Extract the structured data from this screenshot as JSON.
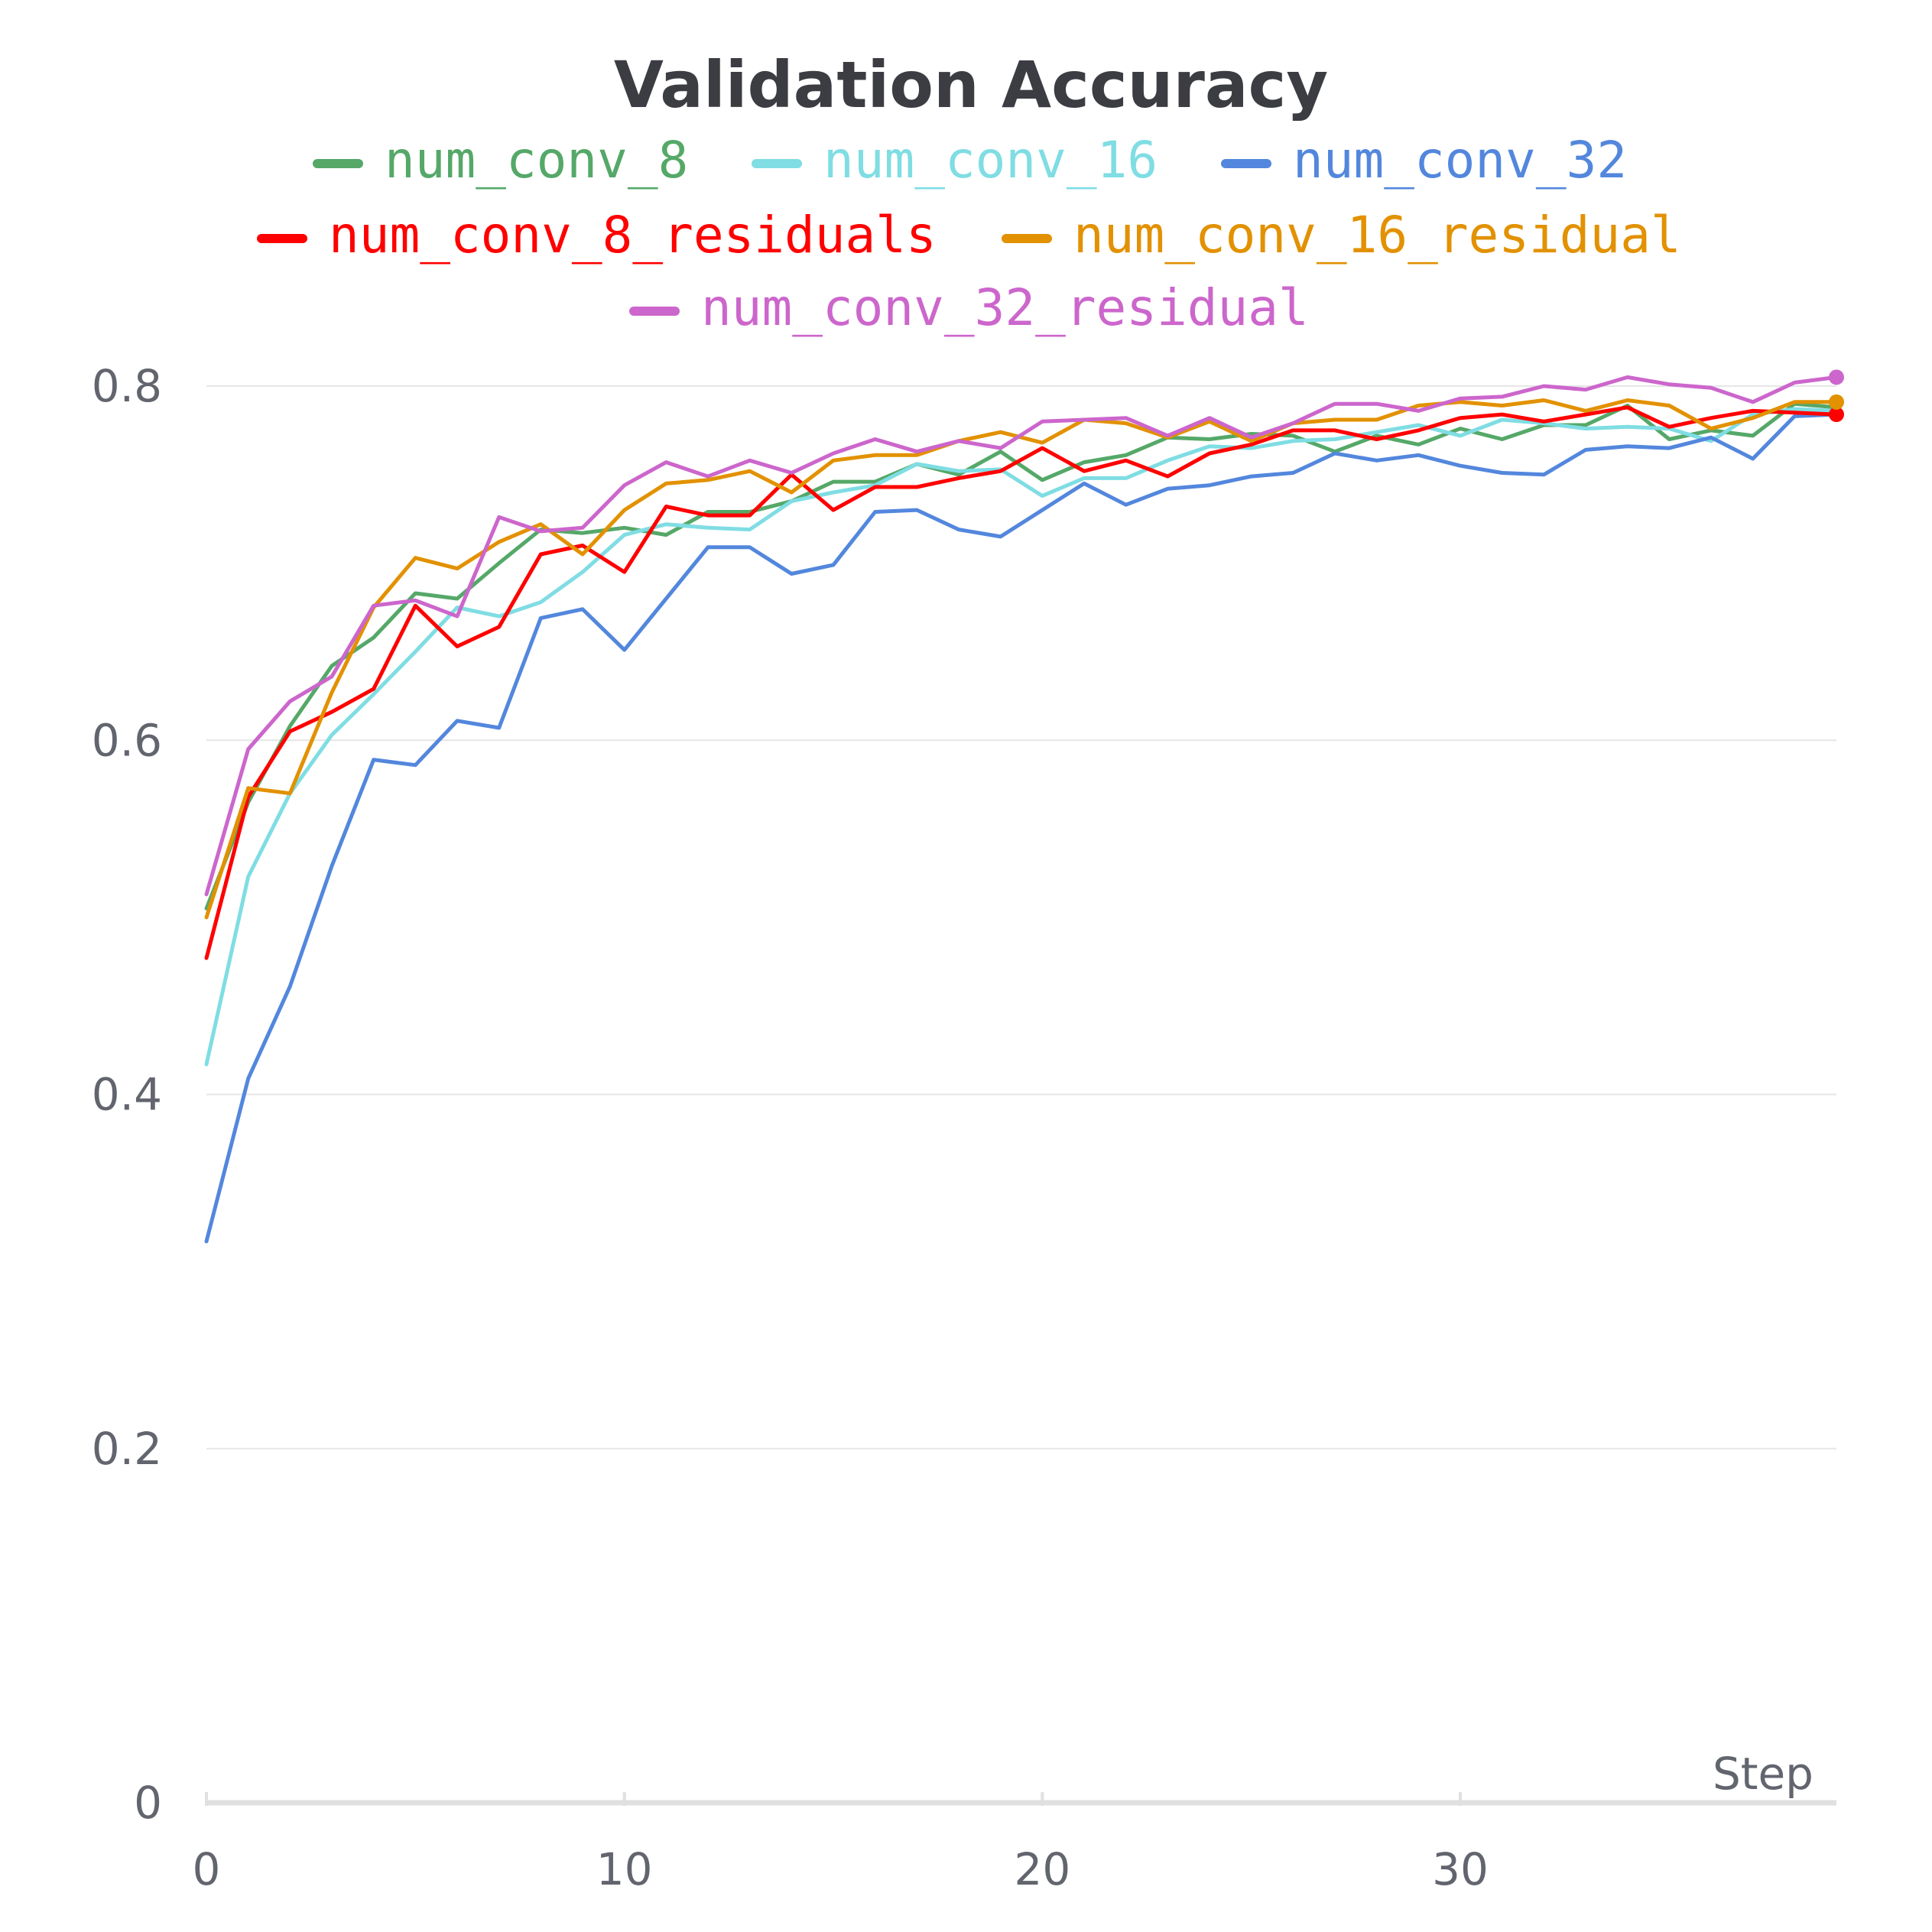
{
  "chart_data": {
    "type": "line",
    "title": "Validation Accuracy",
    "xlabel": "Step",
    "ylabel": "",
    "xlim": [
      0,
      39
    ],
    "ylim": [
      0,
      0.8
    ],
    "x_ticks": [
      0,
      10,
      20,
      30
    ],
    "x_tick_labels": [
      "0",
      "10",
      "20",
      "30"
    ],
    "y_ticks": [
      0,
      0.2,
      0.4,
      0.6,
      0.8
    ],
    "y_tick_labels": [
      "0",
      "0.2",
      "0.4",
      "0.6",
      "0.8"
    ],
    "grid": "horizontal",
    "legend_position": "top-center",
    "x": [
      0,
      1,
      2,
      3,
      4,
      5,
      6,
      7,
      8,
      9,
      10,
      11,
      12,
      13,
      14,
      15,
      16,
      17,
      18,
      19,
      20,
      21,
      22,
      23,
      24,
      25,
      26,
      27,
      28,
      29,
      30,
      31,
      32,
      33,
      34,
      35,
      36,
      37,
      38,
      39
    ],
    "series": [
      {
        "name": "num_conv_8",
        "color": "#55a868",
        "end_marker": false,
        "values": [
          0.505,
          0.565,
          0.608,
          0.642,
          0.658,
          0.683,
          0.68,
          0.7,
          0.719,
          0.717,
          0.72,
          0.716,
          0.729,
          0.729,
          0.735,
          0.746,
          0.746,
          0.756,
          0.75,
          0.763,
          0.747,
          0.757,
          0.761,
          0.771,
          0.77,
          0.773,
          0.772,
          0.763,
          0.772,
          0.767,
          0.776,
          0.77,
          0.778,
          0.778,
          0.789,
          0.77,
          0.775,
          0.772,
          0.79,
          0.788
        ]
      },
      {
        "name": "num_conv_16",
        "color": "#7fdde3",
        "end_marker": false,
        "values": [
          0.417,
          0.523,
          0.57,
          0.603,
          0.626,
          0.65,
          0.675,
          0.67,
          0.678,
          0.695,
          0.716,
          0.722,
          0.72,
          0.719,
          0.735,
          0.74,
          0.744,
          0.756,
          0.752,
          0.753,
          0.738,
          0.748,
          0.748,
          0.758,
          0.766,
          0.765,
          0.769,
          0.77,
          0.774,
          0.778,
          0.772,
          0.781,
          0.779,
          0.776,
          0.777,
          0.776,
          0.769,
          0.784,
          0.787,
          0.786
        ]
      },
      {
        "name": "num_conv_32",
        "color": "#5387dd",
        "end_marker": false,
        "values": [
          0.317,
          0.409,
          0.461,
          0.529,
          0.589,
          0.586,
          0.611,
          0.607,
          0.669,
          0.674,
          0.651,
          0.68,
          0.709,
          0.709,
          0.694,
          0.699,
          0.729,
          0.73,
          0.719,
          0.715,
          0.73,
          0.745,
          0.733,
          0.742,
          0.744,
          0.749,
          0.751,
          0.762,
          0.758,
          0.761,
          0.755,
          0.751,
          0.75,
          0.764,
          0.766,
          0.765,
          0.771,
          0.759,
          0.783,
          0.784
        ]
      },
      {
        "name": "num_conv_8_residuals",
        "color": "#ff0000",
        "end_marker": true,
        "values": [
          0.477,
          0.568,
          0.605,
          0.616,
          0.629,
          0.676,
          0.653,
          0.664,
          0.705,
          0.71,
          0.695,
          0.732,
          0.727,
          0.727,
          0.75,
          0.73,
          0.743,
          0.743,
          0.748,
          0.752,
          0.765,
          0.752,
          0.758,
          0.749,
          0.762,
          0.767,
          0.775,
          0.775,
          0.77,
          0.775,
          0.782,
          0.784,
          0.78,
          0.784,
          0.788,
          0.777,
          0.782,
          0.786,
          0.785,
          0.784
        ]
      },
      {
        "name": "num_conv_16_residual",
        "color": "#e29100",
        "end_marker": true,
        "values": [
          0.5,
          0.573,
          0.57,
          0.627,
          0.675,
          0.703,
          0.697,
          0.712,
          0.722,
          0.705,
          0.73,
          0.745,
          0.747,
          0.752,
          0.74,
          0.758,
          0.761,
          0.761,
          0.769,
          0.774,
          0.768,
          0.781,
          0.779,
          0.771,
          0.78,
          0.769,
          0.779,
          0.781,
          0.781,
          0.789,
          0.791,
          0.789,
          0.792,
          0.786,
          0.792,
          0.789,
          0.776,
          0.782,
          0.791,
          0.791
        ]
      },
      {
        "name": "num_conv_32_residual",
        "color": "#cc66cc",
        "end_marker": true,
        "values": [
          0.513,
          0.595,
          0.622,
          0.636,
          0.676,
          0.679,
          0.67,
          0.726,
          0.718,
          0.72,
          0.744,
          0.757,
          0.749,
          0.758,
          0.751,
          0.762,
          0.77,
          0.763,
          0.769,
          0.765,
          0.78,
          0.781,
          0.782,
          0.772,
          0.782,
          0.771,
          0.779,
          0.79,
          0.79,
          0.786,
          0.793,
          0.794,
          0.8,
          0.798,
          0.805,
          0.801,
          0.799,
          0.791,
          0.802,
          0.805
        ]
      }
    ]
  }
}
